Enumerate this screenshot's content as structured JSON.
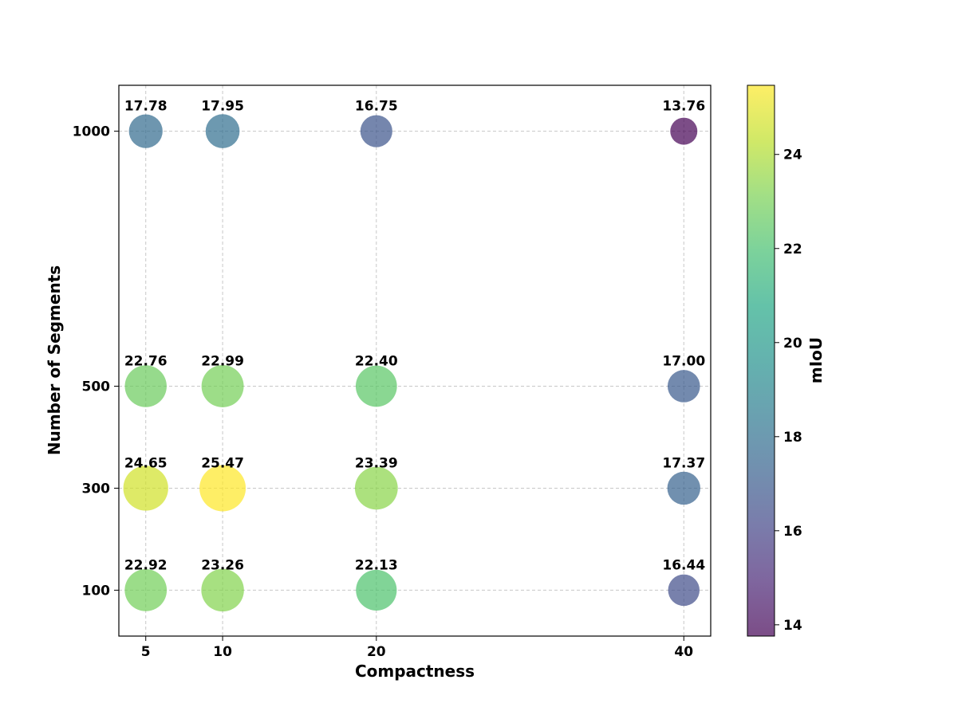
{
  "chart_data": {
    "type": "scatter",
    "title": "",
    "xlabel": "Compactness",
    "ylabel": "Number of Segments",
    "x_ticks": [
      5,
      10,
      20,
      40
    ],
    "y_ticks": [
      100,
      300,
      500,
      1000
    ],
    "grid": true,
    "points": [
      {
        "x": 5,
        "y": 1000,
        "value": 17.78,
        "label": "17.78"
      },
      {
        "x": 10,
        "y": 1000,
        "value": 17.95,
        "label": "17.95"
      },
      {
        "x": 20,
        "y": 1000,
        "value": 16.75,
        "label": "16.75"
      },
      {
        "x": 40,
        "y": 1000,
        "value": 13.76,
        "label": "13.76"
      },
      {
        "x": 5,
        "y": 500,
        "value": 22.76,
        "label": "22.76"
      },
      {
        "x": 10,
        "y": 500,
        "value": 22.99,
        "label": "22.99"
      },
      {
        "x": 20,
        "y": 500,
        "value": 22.4,
        "label": "22.40"
      },
      {
        "x": 40,
        "y": 500,
        "value": 17.0,
        "label": "17.00"
      },
      {
        "x": 5,
        "y": 300,
        "value": 24.65,
        "label": "24.65"
      },
      {
        "x": 10,
        "y": 300,
        "value": 25.47,
        "label": "25.47"
      },
      {
        "x": 20,
        "y": 300,
        "value": 23.39,
        "label": "23.39"
      },
      {
        "x": 40,
        "y": 300,
        "value": 17.37,
        "label": "17.37"
      },
      {
        "x": 5,
        "y": 100,
        "value": 22.92,
        "label": "22.92"
      },
      {
        "x": 10,
        "y": 100,
        "value": 23.26,
        "label": "23.26"
      },
      {
        "x": 20,
        "y": 100,
        "value": 22.13,
        "label": "22.13"
      },
      {
        "x": 40,
        "y": 100,
        "value": 16.44,
        "label": "16.44"
      }
    ],
    "colorbar": {
      "label": "mIoU",
      "range": [
        13.76,
        25.47
      ],
      "ticks": [
        14,
        16,
        18,
        20,
        22,
        24
      ],
      "colormap": "viridis"
    }
  }
}
